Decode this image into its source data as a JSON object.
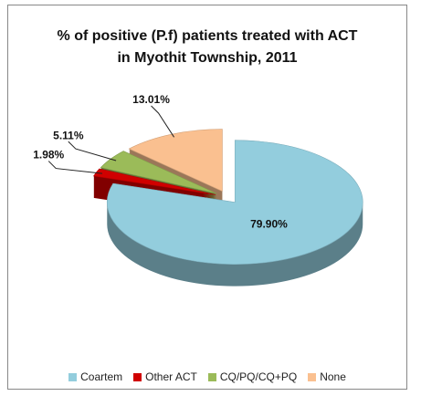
{
  "chart_data": {
    "type": "pie3d",
    "title": "% of positive (P.f) patients treated with ACT in Myothit Township, 2011",
    "categories": [
      "Coartem",
      "Other ACT",
      "CQ/PQ/CQ+PQ",
      "None"
    ],
    "values": [
      79.9,
      1.98,
      5.11,
      13.01
    ],
    "value_labels": [
      "79.90%",
      "1.98%",
      "5.11%",
      "13.01%"
    ],
    "colors": [
      "#93cddd",
      "#d00000",
      "#9bbb59",
      "#fac090"
    ],
    "legend": "bottom"
  }
}
